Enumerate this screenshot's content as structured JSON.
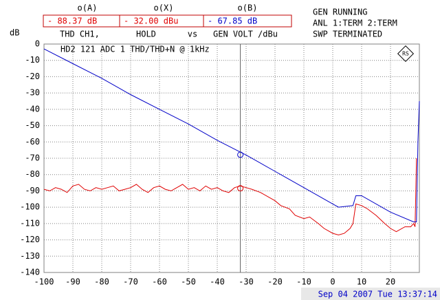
{
  "header": {
    "readouts": [
      {
        "name": "o(A)",
        "value": "- 88.37 dB",
        "label": "THD   CH1,",
        "color": "#e00000"
      },
      {
        "name": "o(X)",
        "value": "- 32.00 dBu",
        "label": "HOLD",
        "color": "#e00000"
      },
      {
        "name": "o(B)",
        "value": "- 67.85 dB",
        "label": "GEN VOLT /dBu",
        "color": "#0000c8"
      }
    ],
    "vs": "vs",
    "status": [
      "GEN RUNNING",
      "ANL 1:TERM 2:TERM",
      "SWP TERMINATED"
    ]
  },
  "footer": {
    "timestamp": "Sep 04 2007 Tue 13:37:14"
  },
  "chart_data": {
    "type": "line",
    "title": "HD2 121 ADC 1 THD/THD+N @ 1kHz",
    "y_label": "dB",
    "xlim": [
      -100,
      30
    ],
    "ylim": [
      -140,
      0
    ],
    "xticks": [
      -100,
      -90,
      -80,
      -70,
      -60,
      -50,
      -40,
      -30,
      -20,
      -10,
      0,
      10,
      20
    ],
    "yticks": [
      0,
      -10,
      -20,
      -30,
      -40,
      -50,
      -60,
      -70,
      -80,
      -90,
      -100,
      -110,
      -120,
      -130,
      -140
    ],
    "grid": true,
    "cursor": {
      "x": -32,
      "values": [
        -88.37,
        -67.85
      ],
      "colors": [
        "#e00000",
        "#0000c8"
      ]
    },
    "series": [
      {
        "name": "THD CH1",
        "color": "#e00000",
        "x": [
          -100,
          -98,
          -96,
          -94,
          -92,
          -90,
          -88,
          -86,
          -84,
          -82,
          -80,
          -78,
          -76,
          -74,
          -72,
          -70,
          -68,
          -66,
          -64,
          -62,
          -60,
          -58,
          -56,
          -54,
          -52,
          -50,
          -48,
          -46,
          -44,
          -42,
          -40,
          -38,
          -36,
          -34,
          -32,
          -30,
          -28,
          -25,
          -22,
          -20,
          -18,
          -15,
          -13,
          -10,
          -8,
          -5,
          -3,
          0,
          2,
          4,
          6,
          7,
          8,
          10,
          12,
          15,
          18,
          20,
          22,
          25,
          27,
          28,
          28.5,
          29
        ],
        "values": [
          -89,
          -90,
          -88,
          -89,
          -91,
          -87,
          -86,
          -89,
          -90,
          -88,
          -89,
          -88,
          -87,
          -90,
          -89,
          -88,
          -86,
          -89,
          -91,
          -88,
          -87,
          -89,
          -90,
          -88,
          -86,
          -89,
          -88,
          -90,
          -87,
          -89,
          -88,
          -90,
          -91,
          -88,
          -87,
          -88,
          -89,
          -91,
          -94,
          -96,
          -99,
          -101,
          -105,
          -107,
          -106,
          -110,
          -113,
          -116,
          -117,
          -116,
          -113,
          -110,
          -98,
          -99,
          -101,
          -105,
          -110,
          -113,
          -115,
          -112,
          -112,
          -110,
          -112,
          -70
        ]
      },
      {
        "name": "GEN VOLT",
        "color": "#0000c8",
        "x": [
          -100,
          -90,
          -80,
          -70,
          -60,
          -50,
          -40,
          -30,
          -20,
          -10,
          0,
          2,
          7,
          8,
          10,
          20,
          28,
          29,
          29.5,
          30
        ],
        "values": [
          -3,
          -12,
          -21,
          -31,
          -40,
          -49,
          -59,
          -68,
          -78,
          -88,
          -98,
          -100,
          -99,
          -93,
          -93,
          -103,
          -109,
          -109,
          -60,
          -35
        ]
      }
    ]
  }
}
